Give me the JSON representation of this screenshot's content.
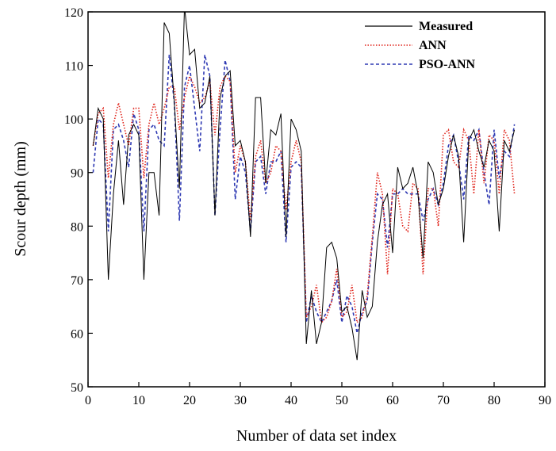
{
  "chart_data": {
    "type": "line",
    "xlabel": "Number of data set index",
    "ylabel": "Scour depth (mm)",
    "xlim": [
      0,
      90
    ],
    "ylim": [
      50,
      120
    ],
    "xticks": [
      0,
      10,
      20,
      30,
      40,
      50,
      60,
      70,
      80,
      90
    ],
    "yticks": [
      50,
      60,
      70,
      80,
      90,
      100,
      110,
      120
    ],
    "grid": false,
    "legend_position": "top-right",
    "series": [
      {
        "name": "Measured",
        "color": "#000000",
        "style": "solid",
        "x": [
          1,
          2,
          3,
          4,
          5,
          6,
          7,
          8,
          9,
          10,
          11,
          12,
          13,
          14,
          15,
          16,
          17,
          18,
          19,
          20,
          21,
          22,
          23,
          24,
          25,
          26,
          27,
          28,
          29,
          30,
          31,
          32,
          33,
          34,
          35,
          36,
          37,
          38,
          39,
          40,
          41,
          42,
          43,
          44,
          45,
          46,
          47,
          48,
          49,
          50,
          51,
          52,
          53,
          54,
          55,
          56,
          57,
          58,
          59,
          60,
          61,
          62,
          63,
          64,
          65,
          66,
          67,
          68,
          69,
          70,
          71,
          72,
          73,
          74,
          75,
          76,
          77,
          78,
          79,
          80,
          81,
          82,
          83,
          84
        ],
        "y": [
          95,
          102,
          100,
          70,
          86,
          96,
          84,
          97,
          99,
          97,
          70,
          90,
          90,
          82,
          118,
          116,
          103,
          87,
          121,
          112,
          113,
          102,
          103,
          108,
          82,
          104,
          108,
          109,
          95,
          96,
          92,
          78,
          104,
          104,
          88,
          98,
          97,
          101,
          78,
          100,
          98,
          94,
          58,
          68,
          58,
          62,
          76,
          77,
          74,
          64,
          65,
          61,
          55,
          68,
          63,
          65,
          77,
          84,
          86,
          75,
          91,
          87,
          88,
          91,
          86,
          74,
          92,
          90,
          84,
          87,
          93,
          97,
          93,
          77,
          96,
          98,
          94,
          91,
          96,
          94,
          79,
          96,
          94,
          98
        ]
      },
      {
        "name": "ANN",
        "color": "#e0241b",
        "style": "dotted",
        "x": [
          1,
          2,
          3,
          4,
          5,
          6,
          7,
          8,
          9,
          10,
          11,
          12,
          13,
          14,
          15,
          16,
          17,
          18,
          19,
          20,
          21,
          22,
          23,
          24,
          25,
          26,
          27,
          28,
          29,
          30,
          31,
          32,
          33,
          34,
          35,
          36,
          37,
          38,
          39,
          40,
          41,
          42,
          43,
          44,
          45,
          46,
          47,
          48,
          49,
          50,
          51,
          52,
          53,
          54,
          55,
          56,
          57,
          58,
          59,
          60,
          61,
          62,
          63,
          64,
          65,
          66,
          67,
          68,
          69,
          70,
          71,
          72,
          73,
          74,
          75,
          76,
          77,
          78,
          79,
          80,
          81,
          82,
          83,
          84
        ],
        "y": [
          95,
          101,
          102,
          89,
          99,
          103,
          99,
          95,
          102,
          102,
          89,
          99,
          103,
          99,
          102,
          106,
          106,
          98,
          104,
          108,
          106,
          103,
          104,
          107,
          97,
          106,
          108,
          107,
          90,
          95,
          92,
          81,
          93,
          96,
          88,
          90,
          95,
          94,
          83,
          92,
          96,
          92,
          63,
          65,
          69,
          62,
          63,
          66,
          72,
          63,
          64,
          69,
          62,
          63,
          67,
          78,
          90,
          86,
          71,
          87,
          86,
          80,
          79,
          88,
          87,
          71,
          87,
          87,
          80,
          97,
          98,
          92,
          91,
          98,
          96,
          86,
          98,
          88,
          97,
          96,
          86,
          98,
          96,
          86
        ]
      },
      {
        "name": "PSO-ANN",
        "color": "#2f3ab3",
        "style": "dashed",
        "x": [
          1,
          2,
          3,
          4,
          5,
          6,
          7,
          8,
          9,
          10,
          11,
          12,
          13,
          14,
          15,
          16,
          17,
          18,
          19,
          20,
          21,
          22,
          23,
          24,
          25,
          26,
          27,
          28,
          29,
          30,
          31,
          32,
          33,
          34,
          35,
          36,
          37,
          38,
          39,
          40,
          41,
          42,
          43,
          44,
          45,
          46,
          47,
          48,
          49,
          50,
          51,
          52,
          53,
          54,
          55,
          56,
          57,
          58,
          59,
          60,
          61,
          62,
          63,
          64,
          65,
          66,
          67,
          68,
          69,
          70,
          71,
          72,
          73,
          74,
          75,
          76,
          77,
          78,
          79,
          80,
          81,
          82,
          83,
          84
        ],
        "y": [
          90,
          100,
          99,
          79,
          98,
          99,
          96,
          91,
          101,
          98,
          79,
          98,
          99,
          96,
          95,
          112,
          103,
          81,
          106,
          110,
          102,
          94,
          112,
          108,
          82,
          98,
          111,
          107,
          85,
          93,
          90,
          79,
          92,
          93,
          86,
          92,
          92,
          94,
          77,
          91,
          92,
          91,
          62,
          67,
          64,
          62,
          64,
          66,
          70,
          62,
          67,
          65,
          60,
          64,
          66,
          77,
          86,
          85,
          76,
          86,
          86,
          87,
          86,
          86,
          86,
          81,
          85,
          87,
          84,
          88,
          95,
          97,
          92,
          85,
          97,
          96,
          98,
          90,
          84,
          98,
          89,
          94,
          93,
          99
        ]
      }
    ]
  }
}
